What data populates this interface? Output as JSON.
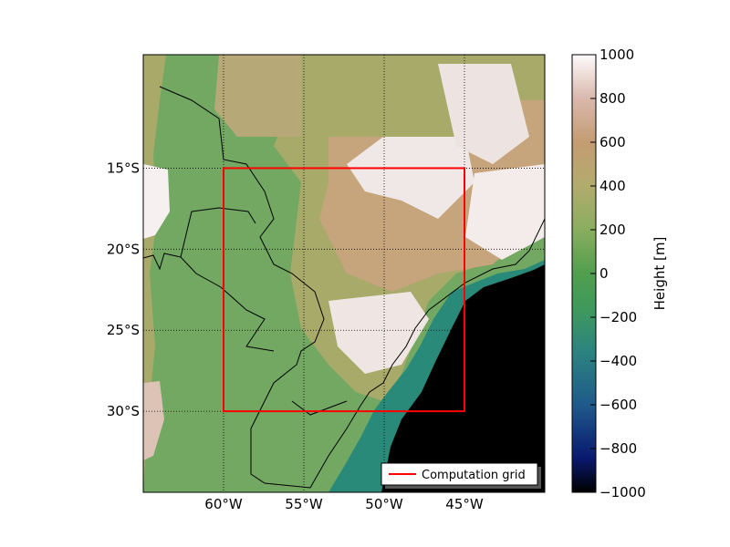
{
  "chart_data": {
    "type": "heatmap",
    "xlabel": "",
    "ylabel": "",
    "x_range": [
      -65,
      -40
    ],
    "y_range": [
      -35,
      -8
    ],
    "x_ticks": [
      {
        "value": -60,
        "label": "60°W"
      },
      {
        "value": -55,
        "label": "55°W"
      },
      {
        "value": -50,
        "label": "50°W"
      },
      {
        "value": -45,
        "label": "45°W"
      }
    ],
    "y_ticks": [
      {
        "value": -15,
        "label": "15°S"
      },
      {
        "value": -20,
        "label": "20°S"
      },
      {
        "value": -25,
        "label": "25°S"
      },
      {
        "value": -30,
        "label": "30°S"
      }
    ],
    "grid": true,
    "computation_grid": {
      "name": "Computation grid",
      "lon_min": -60,
      "lon_max": -45,
      "lat_min": -30,
      "lat_max": -15,
      "color": "#ff0000"
    },
    "legend": {
      "position": "bottom-right",
      "entries": [
        "Computation grid"
      ]
    },
    "colorbar": {
      "label": "Height [m]",
      "range": [
        -1000,
        1000
      ],
      "ticks": [
        "1000",
        "800",
        "600",
        "400",
        "200",
        "0",
        "−200",
        "−400",
        "−600",
        "−800",
        "−1000"
      ],
      "colormap": "gist_earth"
    },
    "colors": {
      "ocean": "#000000",
      "lowland": "#72a862",
      "plateau": "#a9aa6a",
      "highland": "#c8a67e",
      "peak": "#f3eeee",
      "border": "#000000"
    }
  }
}
